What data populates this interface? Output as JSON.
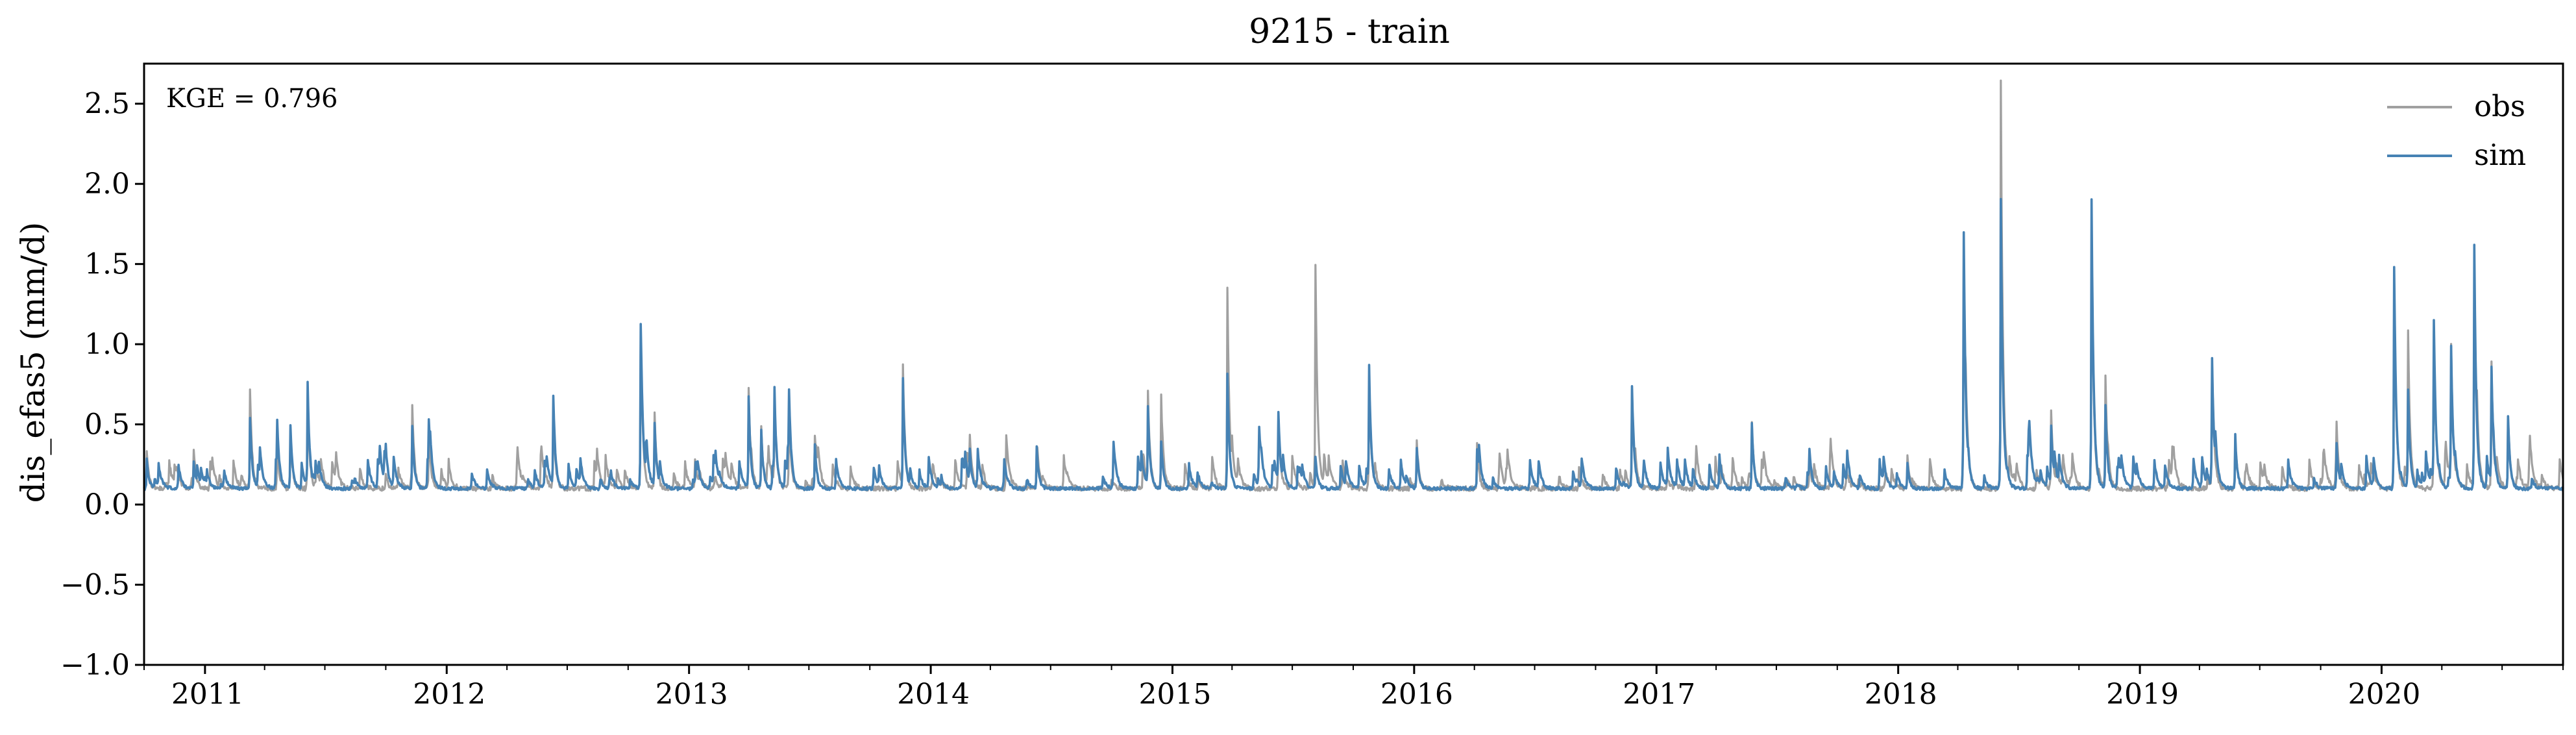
{
  "chart_data": {
    "type": "line",
    "title": "9215 - train",
    "ylabel": "dis_efas5 (mm/d)",
    "xlabel": "",
    "annotation": "KGE = 0.796",
    "xlim": [
      "2010-10-01",
      "2020-10-01"
    ],
    "ylim": [
      -1.0,
      2.75
    ],
    "yticks": [
      -1.0,
      -0.5,
      0.0,
      0.5,
      1.0,
      1.5,
      2.0,
      2.5
    ],
    "ytick_labels": [
      "−1.0",
      "−0.5",
      "0.0",
      "0.5",
      "1.0",
      "1.5",
      "2.0",
      "2.5"
    ],
    "xtick_labels": [
      "2011",
      "2012",
      "2013",
      "2014",
      "2015",
      "2016",
      "2017",
      "2018",
      "2019",
      "2020"
    ],
    "xticks": [
      "2011-01-01",
      "2012-01-01",
      "2013-01-01",
      "2014-01-01",
      "2015-01-01",
      "2016-01-01",
      "2017-01-01",
      "2018-01-01",
      "2019-01-01",
      "2020-01-01"
    ],
    "grid": false,
    "legend_position": "top-right",
    "baseline": 0.1,
    "series": [
      {
        "name": "obs",
        "color": "#a0a0a0",
        "peaks": [
          [
            "2010-10-05",
            0.33
          ],
          [
            "2010-12-15",
            0.31
          ],
          [
            "2011-03-10",
            0.72
          ],
          [
            "2011-04-20",
            0.38
          ],
          [
            "2011-05-10",
            0.47
          ],
          [
            "2011-06-05",
            0.62
          ],
          [
            "2011-10-01",
            0.2
          ],
          [
            "2011-11-10",
            0.59
          ],
          [
            "2011-12-05",
            0.4
          ],
          [
            "2012-06-10",
            0.58
          ],
          [
            "2012-10-20",
            1.1
          ],
          [
            "2012-11-10",
            0.58
          ],
          [
            "2013-04-01",
            0.72
          ],
          [
            "2013-04-20",
            0.48
          ],
          [
            "2013-05-10",
            0.62
          ],
          [
            "2013-06-01",
            0.58
          ],
          [
            "2013-07-10",
            0.4
          ],
          [
            "2013-11-20",
            0.84
          ],
          [
            "2014-03-01",
            0.33
          ],
          [
            "2014-06-10",
            0.36
          ],
          [
            "2014-11-25",
            0.67
          ],
          [
            "2014-12-15",
            0.55
          ],
          [
            "2015-03-25",
            1.34
          ],
          [
            "2015-06-10",
            0.57
          ],
          [
            "2015-08-05",
            1.49
          ],
          [
            "2015-10-25",
            0.8
          ],
          [
            "2016-01-05",
            0.4
          ],
          [
            "2016-04-05",
            0.39
          ],
          [
            "2016-11-25",
            0.71
          ],
          [
            "2017-05-25",
            0.46
          ],
          [
            "2017-08-20",
            0.3
          ],
          [
            "2018-01-15",
            0.3
          ],
          [
            "2018-04-10",
            1.62
          ],
          [
            "2018-06-05",
            2.63
          ],
          [
            "2018-08-20",
            0.58
          ],
          [
            "2018-10-20",
            1.76
          ],
          [
            "2018-11-10",
            0.8
          ],
          [
            "2019-04-20",
            0.87
          ],
          [
            "2019-05-25",
            0.42
          ],
          [
            "2019-10-25",
            0.4
          ],
          [
            "2020-01-20",
            1.4
          ],
          [
            "2020-02-10",
            1.06
          ],
          [
            "2020-03-20",
            1.08
          ],
          [
            "2020-04-15",
            0.93
          ],
          [
            "2020-05-20",
            1.5
          ],
          [
            "2020-06-15",
            0.83
          ],
          [
            "2020-07-10",
            0.55
          ]
        ]
      },
      {
        "name": "sim",
        "color": "#4682b4",
        "peaks": [
          [
            "2010-10-05",
            0.28
          ],
          [
            "2010-12-15",
            0.27
          ],
          [
            "2011-03-10",
            0.55
          ],
          [
            "2011-04-20",
            0.42
          ],
          [
            "2011-05-10",
            0.5
          ],
          [
            "2011-06-05",
            0.74
          ],
          [
            "2011-10-01",
            0.22
          ],
          [
            "2011-11-10",
            0.49
          ],
          [
            "2011-12-05",
            0.42
          ],
          [
            "2012-06-10",
            0.66
          ],
          [
            "2012-10-20",
            1.1
          ],
          [
            "2012-11-10",
            0.5
          ],
          [
            "2013-04-01",
            0.66
          ],
          [
            "2013-04-20",
            0.47
          ],
          [
            "2013-05-10",
            0.65
          ],
          [
            "2013-06-01",
            0.55
          ],
          [
            "2013-07-10",
            0.38
          ],
          [
            "2013-11-20",
            0.78
          ],
          [
            "2014-03-01",
            0.3
          ],
          [
            "2014-06-10",
            0.36
          ],
          [
            "2014-11-25",
            0.58
          ],
          [
            "2014-12-15",
            0.4
          ],
          [
            "2015-03-25",
            0.81
          ],
          [
            "2015-06-10",
            0.54
          ],
          [
            "2015-08-05",
            0.3
          ],
          [
            "2015-10-25",
            0.82
          ],
          [
            "2016-01-05",
            0.36
          ],
          [
            "2016-04-05",
            0.35
          ],
          [
            "2016-11-25",
            0.66
          ],
          [
            "2017-05-25",
            0.51
          ],
          [
            "2017-08-20",
            0.3
          ],
          [
            "2018-01-15",
            0.25
          ],
          [
            "2018-04-10",
            1.67
          ],
          [
            "2018-06-05",
            1.9
          ],
          [
            "2018-08-20",
            0.45
          ],
          [
            "2018-10-20",
            1.79
          ],
          [
            "2018-11-10",
            0.62
          ],
          [
            "2019-04-20",
            0.9
          ],
          [
            "2019-05-25",
            0.43
          ],
          [
            "2019-10-25",
            0.38
          ],
          [
            "2020-01-20",
            1.49
          ],
          [
            "2020-02-10",
            0.72
          ],
          [
            "2020-03-20",
            1.11
          ],
          [
            "2020-04-15",
            0.95
          ],
          [
            "2020-05-20",
            1.62
          ],
          [
            "2020-06-15",
            0.82
          ],
          [
            "2020-07-10",
            0.56
          ]
        ]
      }
    ]
  }
}
